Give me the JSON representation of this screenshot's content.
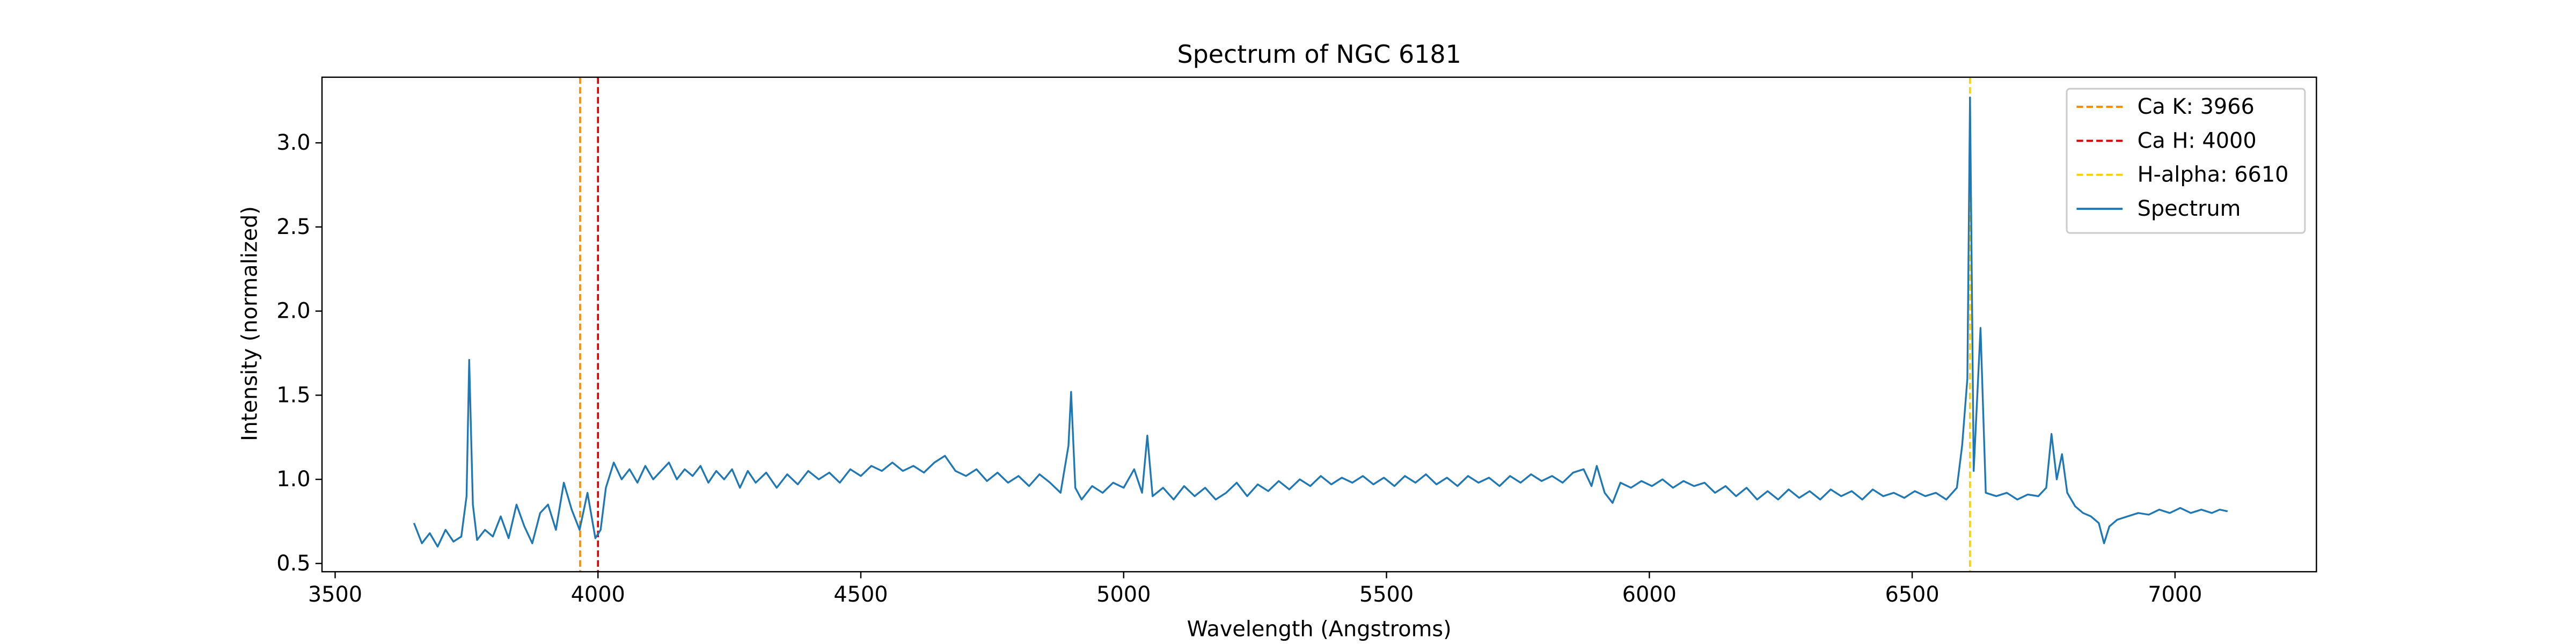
{
  "chart_data": {
    "type": "line",
    "title": "Spectrum of NGC 6181",
    "x_label": "Wavelength (Angstroms)",
    "y_label": "Intensity (normalized)",
    "xlim": [
      3475,
      7269
    ],
    "ylim": [
      0.451,
      3.39
    ],
    "xticks": [
      3500,
      4000,
      4500,
      5000,
      5500,
      6000,
      6500,
      7000
    ],
    "yticks": [
      0.5,
      {
        "value": 1,
        "label": "1.0"
      },
      1.5,
      {
        "value": 2,
        "label": "2.0"
      },
      2.5,
      {
        "value": 3,
        "label": "3.0"
      }
    ],
    "grid": false,
    "legend": "upper right",
    "vlines": [
      {
        "name": "Ca K: 3966",
        "x": 3966,
        "color": "#ff8c00"
      },
      {
        "name": "Ca H: 4000",
        "x": 4000,
        "color": "#e00000"
      },
      {
        "name": "H-alpha: 6610",
        "x": 6610,
        "color": "#ffd000"
      }
    ],
    "series": [
      {
        "name": "Spectrum",
        "color": "#1f77b4",
        "x": [
          3650,
          3665,
          3680,
          3695,
          3710,
          3725,
          3740,
          3750,
          3755,
          3762,
          3770,
          3785,
          3800,
          3815,
          3830,
          3845,
          3860,
          3875,
          3890,
          3905,
          3920,
          3935,
          3950,
          3965,
          3980,
          3995,
          4005,
          4015,
          4030,
          4045,
          4060,
          4075,
          4090,
          4105,
          4120,
          4135,
          4150,
          4165,
          4180,
          4195,
          4210,
          4225,
          4240,
          4255,
          4270,
          4285,
          4300,
          4320,
          4340,
          4360,
          4380,
          4400,
          4420,
          4440,
          4460,
          4480,
          4500,
          4520,
          4540,
          4560,
          4580,
          4600,
          4620,
          4640,
          4660,
          4680,
          4700,
          4720,
          4740,
          4760,
          4780,
          4800,
          4820,
          4840,
          4860,
          4880,
          4895,
          4900,
          4908,
          4920,
          4940,
          4960,
          4980,
          5000,
          5020,
          5035,
          5045,
          5055,
          5075,
          5095,
          5115,
          5135,
          5155,
          5175,
          5195,
          5215,
          5235,
          5255,
          5275,
          5295,
          5315,
          5335,
          5355,
          5375,
          5395,
          5415,
          5435,
          5455,
          5475,
          5495,
          5515,
          5535,
          5555,
          5575,
          5595,
          5615,
          5635,
          5655,
          5675,
          5695,
          5715,
          5735,
          5755,
          5775,
          5795,
          5815,
          5835,
          5855,
          5875,
          5890,
          5900,
          5915,
          5930,
          5945,
          5965,
          5985,
          6005,
          6025,
          6045,
          6065,
          6085,
          6105,
          6125,
          6145,
          6165,
          6185,
          6205,
          6225,
          6245,
          6265,
          6285,
          6305,
          6325,
          6345,
          6365,
          6385,
          6405,
          6425,
          6445,
          6465,
          6485,
          6505,
          6525,
          6545,
          6565,
          6585,
          6595,
          6605,
          6610,
          6617,
          6630,
          6640,
          6660,
          6680,
          6700,
          6720,
          6740,
          6755,
          6765,
          6775,
          6785,
          6795,
          6810,
          6825,
          6840,
          6855,
          6865,
          6875,
          6890,
          6910,
          6930,
          6950,
          6970,
          6990,
          7010,
          7030,
          7050,
          7070,
          7085,
          7100
        ],
        "values": [
          0.74,
          0.62,
          0.68,
          0.6,
          0.7,
          0.63,
          0.66,
          0.9,
          1.71,
          0.85,
          0.64,
          0.7,
          0.66,
          0.78,
          0.65,
          0.85,
          0.72,
          0.62,
          0.8,
          0.85,
          0.7,
          0.98,
          0.82,
          0.7,
          0.92,
          0.65,
          0.7,
          0.95,
          1.1,
          1.0,
          1.06,
          0.98,
          1.08,
          1.0,
          1.05,
          1.1,
          1.0,
          1.06,
          1.02,
          1.08,
          0.98,
          1.05,
          1.0,
          1.06,
          0.95,
          1.05,
          0.98,
          1.04,
          0.95,
          1.03,
          0.97,
          1.05,
          1.0,
          1.04,
          0.98,
          1.06,
          1.02,
          1.08,
          1.05,
          1.1,
          1.05,
          1.08,
          1.04,
          1.1,
          1.14,
          1.05,
          1.02,
          1.06,
          0.99,
          1.04,
          0.98,
          1.02,
          0.96,
          1.03,
          0.98,
          0.92,
          1.2,
          1.52,
          0.95,
          0.88,
          0.96,
          0.92,
          0.98,
          0.95,
          1.06,
          0.92,
          1.26,
          0.9,
          0.95,
          0.88,
          0.96,
          0.9,
          0.95,
          0.88,
          0.92,
          0.98,
          0.9,
          0.97,
          0.93,
          0.99,
          0.94,
          1.0,
          0.96,
          1.02,
          0.97,
          1.01,
          0.98,
          1.02,
          0.97,
          1.01,
          0.96,
          1.02,
          0.98,
          1.03,
          0.97,
          1.01,
          0.96,
          1.02,
          0.98,
          1.01,
          0.96,
          1.02,
          0.98,
          1.03,
          0.99,
          1.02,
          0.98,
          1.04,
          1.06,
          0.96,
          1.08,
          0.92,
          0.86,
          0.98,
          0.95,
          0.99,
          0.96,
          1.0,
          0.95,
          0.99,
          0.96,
          0.98,
          0.92,
          0.96,
          0.9,
          0.95,
          0.88,
          0.93,
          0.88,
          0.94,
          0.89,
          0.93,
          0.88,
          0.94,
          0.9,
          0.93,
          0.88,
          0.94,
          0.9,
          0.92,
          0.89,
          0.93,
          0.9,
          0.92,
          0.88,
          0.95,
          1.2,
          1.6,
          3.27,
          1.05,
          1.9,
          0.92,
          0.9,
          0.92,
          0.88,
          0.91,
          0.9,
          0.95,
          1.27,
          1.0,
          1.15,
          0.92,
          0.84,
          0.8,
          0.78,
          0.74,
          0.62,
          0.72,
          0.76,
          0.78,
          0.8,
          0.79,
          0.82,
          0.8,
          0.83,
          0.8,
          0.82,
          0.8,
          0.82,
          0.81
        ]
      }
    ]
  }
}
